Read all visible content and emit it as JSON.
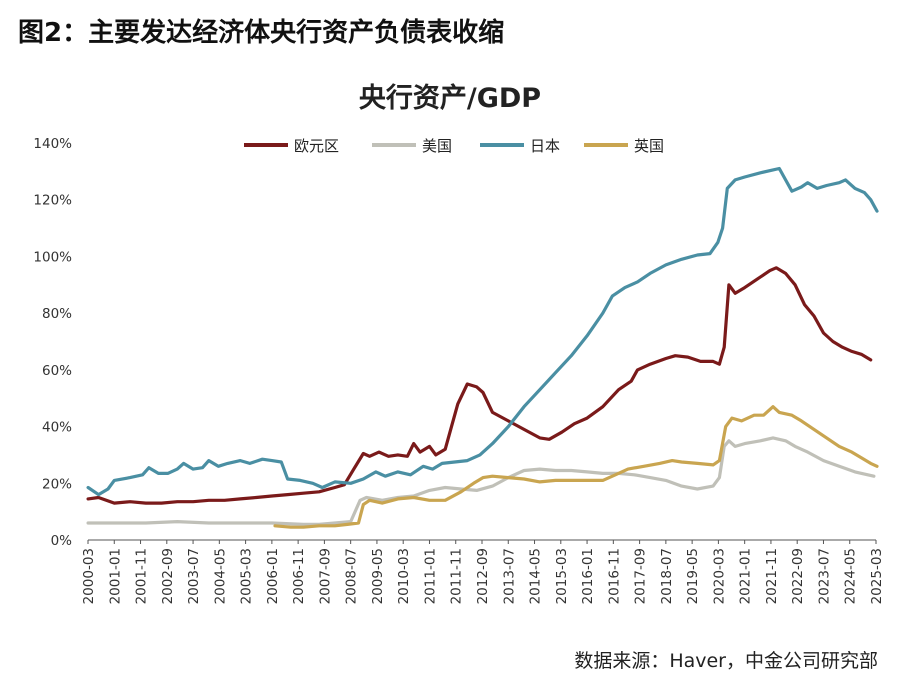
{
  "figure": {
    "title": "图2：主要发达经济体央行资产负债表收缩",
    "source": "数据来源：Haver，中金公司研究部"
  },
  "chart_data": {
    "type": "line",
    "title": "央行资产/GDP",
    "xlabel": "",
    "ylabel": "",
    "ylim": [
      0,
      140
    ],
    "yticks": [
      0,
      20,
      40,
      60,
      80,
      100,
      120,
      140
    ],
    "ytick_labels": [
      "0%",
      "20%",
      "40%",
      "60%",
      "80%",
      "100%",
      "120%",
      "140%"
    ],
    "x_range": [
      2000.167,
      2025.167
    ],
    "xtick_labels": [
      "2000-03",
      "2001-01",
      "2001-11",
      "2002-09",
      "2003-07",
      "2004-05",
      "2005-03",
      "2006-01",
      "2006-11",
      "2007-09",
      "2008-07",
      "2009-05",
      "2010-03",
      "2011-01",
      "2011-11",
      "2012-09",
      "2013-07",
      "2014-05",
      "2015-03",
      "2016-01",
      "2016-11",
      "2017-09",
      "2018-07",
      "2019-05",
      "2020-03",
      "2021-01",
      "2021-11",
      "2022-09",
      "2023-07",
      "2024-05",
      "2025-03"
    ],
    "grid": false,
    "legend": {
      "position": "top"
    },
    "series": [
      {
        "name": "欧元区",
        "color": "#7a1a1a",
        "points": [
          [
            2000.17,
            14.5
          ],
          [
            2000.5,
            15
          ],
          [
            2001.0,
            13
          ],
          [
            2001.5,
            13.5
          ],
          [
            2002.0,
            13
          ],
          [
            2002.5,
            13
          ],
          [
            2003.0,
            13.5
          ],
          [
            2003.5,
            13.5
          ],
          [
            2004.0,
            14
          ],
          [
            2004.5,
            14
          ],
          [
            2005.0,
            14.5
          ],
          [
            2005.5,
            15
          ],
          [
            2006.0,
            15.5
          ],
          [
            2006.5,
            16
          ],
          [
            2007.0,
            16.5
          ],
          [
            2007.5,
            17
          ],
          [
            2008.0,
            18.5
          ],
          [
            2008.3,
            19.5
          ],
          [
            2008.6,
            25
          ],
          [
            2008.9,
            30.5
          ],
          [
            2009.1,
            29.5
          ],
          [
            2009.4,
            31
          ],
          [
            2009.7,
            29.5
          ],
          [
            2010.0,
            30
          ],
          [
            2010.3,
            29.5
          ],
          [
            2010.5,
            34
          ],
          [
            2010.7,
            31
          ],
          [
            2011.0,
            33
          ],
          [
            2011.2,
            30
          ],
          [
            2011.5,
            32
          ],
          [
            2011.7,
            40
          ],
          [
            2011.9,
            48
          ],
          [
            2012.2,
            55
          ],
          [
            2012.5,
            54
          ],
          [
            2012.7,
            52
          ],
          [
            2013.0,
            45
          ],
          [
            2013.5,
            42
          ],
          [
            2014.0,
            39
          ],
          [
            2014.5,
            36
          ],
          [
            2014.8,
            35.5
          ],
          [
            2015.2,
            38
          ],
          [
            2015.6,
            41
          ],
          [
            2016.0,
            43
          ],
          [
            2016.5,
            47
          ],
          [
            2017.0,
            53
          ],
          [
            2017.4,
            56
          ],
          [
            2017.6,
            60
          ],
          [
            2018.0,
            62
          ],
          [
            2018.5,
            64
          ],
          [
            2018.8,
            65
          ],
          [
            2019.2,
            64.5
          ],
          [
            2019.6,
            63
          ],
          [
            2020.0,
            63
          ],
          [
            2020.2,
            62
          ],
          [
            2020.35,
            68
          ],
          [
            2020.5,
            90
          ],
          [
            2020.7,
            87
          ],
          [
            2021.0,
            89
          ],
          [
            2021.4,
            92
          ],
          [
            2021.8,
            95
          ],
          [
            2022.0,
            96
          ],
          [
            2022.3,
            94
          ],
          [
            2022.6,
            90
          ],
          [
            2022.9,
            83
          ],
          [
            2023.2,
            79
          ],
          [
            2023.5,
            73
          ],
          [
            2023.8,
            70
          ],
          [
            2024.1,
            68
          ],
          [
            2024.4,
            66.5
          ],
          [
            2024.7,
            65.5
          ],
          [
            2025.0,
            63.5
          ]
        ]
      },
      {
        "name": "美国",
        "color": "#c0c0b8",
        "points": [
          [
            2000.17,
            6
          ],
          [
            2001.0,
            6
          ],
          [
            2002.0,
            6
          ],
          [
            2003.0,
            6.5
          ],
          [
            2004.0,
            6
          ],
          [
            2005.0,
            6
          ],
          [
            2006.0,
            6
          ],
          [
            2007.0,
            5.5
          ],
          [
            2007.5,
            5.5
          ],
          [
            2008.0,
            6
          ],
          [
            2008.5,
            6.5
          ],
          [
            2008.8,
            14
          ],
          [
            2009.0,
            15
          ],
          [
            2009.5,
            14
          ],
          [
            2010.0,
            15
          ],
          [
            2010.5,
            15.5
          ],
          [
            2011.0,
            17.5
          ],
          [
            2011.5,
            18.5
          ],
          [
            2012.0,
            18
          ],
          [
            2012.5,
            17.5
          ],
          [
            2013.0,
            19
          ],
          [
            2013.5,
            22
          ],
          [
            2014.0,
            24.5
          ],
          [
            2014.5,
            25
          ],
          [
            2015.0,
            24.5
          ],
          [
            2015.5,
            24.5
          ],
          [
            2016.0,
            24
          ],
          [
            2016.5,
            23.5
          ],
          [
            2017.0,
            23.5
          ],
          [
            2017.5,
            23
          ],
          [
            2018.0,
            22
          ],
          [
            2018.5,
            21
          ],
          [
            2019.0,
            19
          ],
          [
            2019.5,
            18
          ],
          [
            2020.0,
            19
          ],
          [
            2020.2,
            22
          ],
          [
            2020.35,
            33
          ],
          [
            2020.5,
            35
          ],
          [
            2020.7,
            33
          ],
          [
            2021.0,
            34
          ],
          [
            2021.5,
            35
          ],
          [
            2021.9,
            36
          ],
          [
            2022.3,
            35
          ],
          [
            2022.6,
            33
          ],
          [
            2023.0,
            31
          ],
          [
            2023.5,
            28
          ],
          [
            2024.0,
            26
          ],
          [
            2024.5,
            24
          ],
          [
            2025.1,
            22.5
          ]
        ]
      },
      {
        "name": "日本",
        "color": "#4a8fa3",
        "points": [
          [
            2000.17,
            18.5
          ],
          [
            2000.5,
            16
          ],
          [
            2000.8,
            18
          ],
          [
            2001.0,
            21
          ],
          [
            2001.5,
            22
          ],
          [
            2001.9,
            23
          ],
          [
            2002.1,
            25.5
          ],
          [
            2002.4,
            23.5
          ],
          [
            2002.7,
            23.5
          ],
          [
            2003.0,
            25
          ],
          [
            2003.2,
            27
          ],
          [
            2003.5,
            25
          ],
          [
            2003.8,
            25.5
          ],
          [
            2004.0,
            28
          ],
          [
            2004.3,
            26
          ],
          [
            2004.6,
            27
          ],
          [
            2005.0,
            28
          ],
          [
            2005.3,
            27
          ],
          [
            2005.7,
            28.5
          ],
          [
            2006.0,
            28
          ],
          [
            2006.3,
            27.5
          ],
          [
            2006.5,
            21.5
          ],
          [
            2006.9,
            21
          ],
          [
            2007.3,
            20
          ],
          [
            2007.6,
            18.5
          ],
          [
            2008.0,
            20.5
          ],
          [
            2008.5,
            20
          ],
          [
            2008.9,
            21.5
          ],
          [
            2009.3,
            24
          ],
          [
            2009.6,
            22.5
          ],
          [
            2010.0,
            24
          ],
          [
            2010.4,
            23
          ],
          [
            2010.8,
            26
          ],
          [
            2011.1,
            25
          ],
          [
            2011.4,
            27
          ],
          [
            2011.8,
            27.5
          ],
          [
            2012.2,
            28
          ],
          [
            2012.6,
            30
          ],
          [
            2013.0,
            34
          ],
          [
            2013.5,
            40
          ],
          [
            2014.0,
            47
          ],
          [
            2014.5,
            53
          ],
          [
            2015.0,
            59
          ],
          [
            2015.5,
            65
          ],
          [
            2016.0,
            72
          ],
          [
            2016.5,
            80
          ],
          [
            2016.8,
            86
          ],
          [
            2017.2,
            89
          ],
          [
            2017.6,
            91
          ],
          [
            2018.0,
            94
          ],
          [
            2018.5,
            97
          ],
          [
            2019.0,
            99
          ],
          [
            2019.5,
            100.5
          ],
          [
            2019.9,
            101
          ],
          [
            2020.15,
            105
          ],
          [
            2020.3,
            110
          ],
          [
            2020.45,
            124
          ],
          [
            2020.7,
            127
          ],
          [
            2021.0,
            128
          ],
          [
            2021.5,
            129.5
          ],
          [
            2021.9,
            130.5
          ],
          [
            2022.1,
            131
          ],
          [
            2022.3,
            127
          ],
          [
            2022.5,
            123
          ],
          [
            2022.8,
            124.5
          ],
          [
            2023.0,
            126
          ],
          [
            2023.3,
            124
          ],
          [
            2023.6,
            125
          ],
          [
            2024.0,
            126
          ],
          [
            2024.2,
            127
          ],
          [
            2024.5,
            124
          ],
          [
            2024.8,
            122.5
          ],
          [
            2025.0,
            120
          ],
          [
            2025.2,
            116
          ]
        ]
      },
      {
        "name": "英国",
        "color": "#c9a550",
        "points": [
          [
            2006.1,
            5
          ],
          [
            2006.6,
            4.5
          ],
          [
            2007.0,
            4.5
          ],
          [
            2007.5,
            5
          ],
          [
            2008.0,
            5
          ],
          [
            2008.4,
            5.5
          ],
          [
            2008.75,
            6
          ],
          [
            2008.9,
            12.5
          ],
          [
            2009.1,
            14
          ],
          [
            2009.5,
            13
          ],
          [
            2010.0,
            14.5
          ],
          [
            2010.5,
            15
          ],
          [
            2011.0,
            14
          ],
          [
            2011.5,
            14
          ],
          [
            2012.0,
            17
          ],
          [
            2012.4,
            20
          ],
          [
            2012.7,
            22
          ],
          [
            2013.0,
            22.5
          ],
          [
            2013.5,
            22
          ],
          [
            2014.0,
            21.5
          ],
          [
            2014.5,
            20.5
          ],
          [
            2015.0,
            21
          ],
          [
            2015.5,
            21
          ],
          [
            2016.0,
            21
          ],
          [
            2016.5,
            21
          ],
          [
            2016.9,
            23
          ],
          [
            2017.3,
            25
          ],
          [
            2017.8,
            26
          ],
          [
            2018.3,
            27
          ],
          [
            2018.7,
            28
          ],
          [
            2019.0,
            27.5
          ],
          [
            2019.5,
            27
          ],
          [
            2020.0,
            26.5
          ],
          [
            2020.2,
            28
          ],
          [
            2020.4,
            40
          ],
          [
            2020.6,
            43
          ],
          [
            2020.9,
            42
          ],
          [
            2021.3,
            44
          ],
          [
            2021.6,
            44
          ],
          [
            2021.9,
            47
          ],
          [
            2022.1,
            45
          ],
          [
            2022.5,
            44
          ],
          [
            2022.8,
            42
          ],
          [
            2023.2,
            39
          ],
          [
            2023.6,
            36
          ],
          [
            2024.0,
            33
          ],
          [
            2024.4,
            31
          ],
          [
            2024.7,
            29
          ],
          [
            2025.0,
            27
          ],
          [
            2025.2,
            26
          ]
        ]
      }
    ]
  }
}
